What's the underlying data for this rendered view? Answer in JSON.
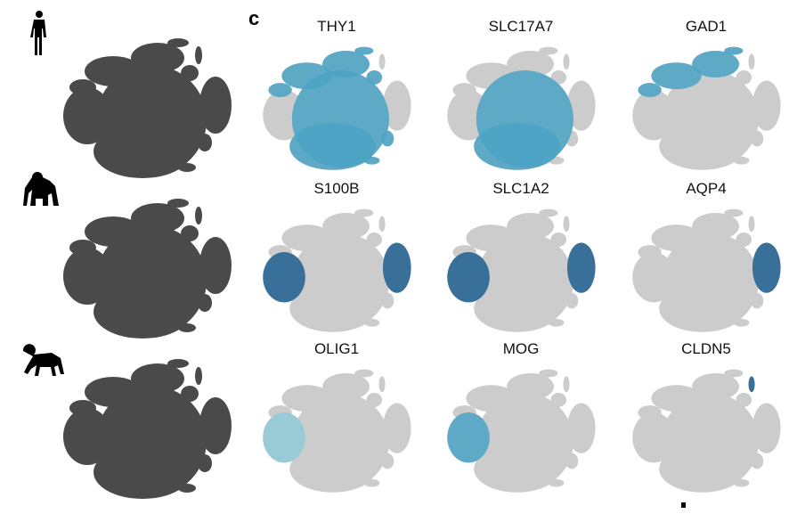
{
  "panel_letter": "c",
  "species": [
    {
      "icon": "human-icon"
    },
    {
      "icon": "gorilla-icon"
    },
    {
      "icon": "macaque-icon"
    }
  ],
  "colors": {
    "species_points": "#4a4a4a",
    "background_points": "#cccccc",
    "expression_high": "#1f5f8f",
    "expression_mid": "#4aa3c4",
    "expression_low": "#8fcad8"
  },
  "genes": [
    {
      "name": "THY1",
      "highlight": [
        "main",
        "top-left",
        "top",
        "right-small"
      ],
      "level": "mid"
    },
    {
      "name": "SLC17A7",
      "highlight": [
        "main"
      ],
      "level": "mid"
    },
    {
      "name": "GAD1",
      "highlight": [
        "top-left",
        "top"
      ],
      "level": "mid"
    },
    {
      "name": "S100B",
      "highlight": [
        "left",
        "right"
      ],
      "level": "high"
    },
    {
      "name": "SLC1A2",
      "highlight": [
        "right",
        "left"
      ],
      "level": "high"
    },
    {
      "name": "AQP4",
      "highlight": [
        "right"
      ],
      "level": "high"
    },
    {
      "name": "OLIG1",
      "highlight": [
        "left"
      ],
      "level": "low"
    },
    {
      "name": "MOG",
      "highlight": [
        "left"
      ],
      "level": "mid"
    },
    {
      "name": "CLDN5",
      "highlight": [
        "top-right-tiny"
      ],
      "level": "high"
    }
  ]
}
